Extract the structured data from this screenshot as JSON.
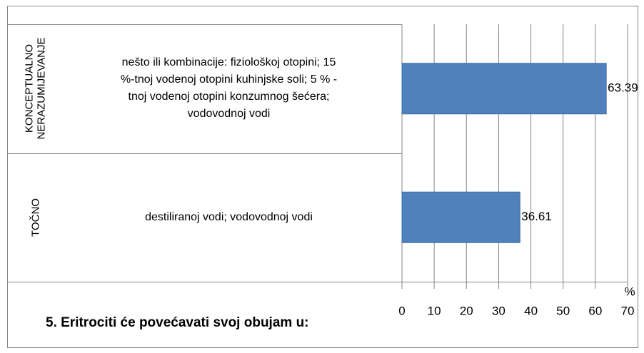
{
  "chart_data": {
    "type": "bar",
    "orientation": "horizontal",
    "title": "5. Eritrociti će povećavati svoj obujam u:",
    "groups": [
      "KONCEPTUALNO NERAZUMIJEVANJE",
      "TOČNO"
    ],
    "categories": [
      "nešto ili kombinacije: fiziološkoj otopini; 15 %-tnoj vodenoj otopini kuhinjske soli; 5 % -tnoj vodenoj otopini konzumnog šećera; vodovodnoj vodi",
      "destiliranoj vodi; vodovodnoj vodi"
    ],
    "values": [
      63.39,
      36.61
    ],
    "color": "#4f81bd",
    "x_label": "%",
    "xlim": [
      0,
      70
    ],
    "xticks": [
      0,
      10,
      20,
      30,
      40,
      50,
      60,
      70
    ],
    "grid": true
  }
}
